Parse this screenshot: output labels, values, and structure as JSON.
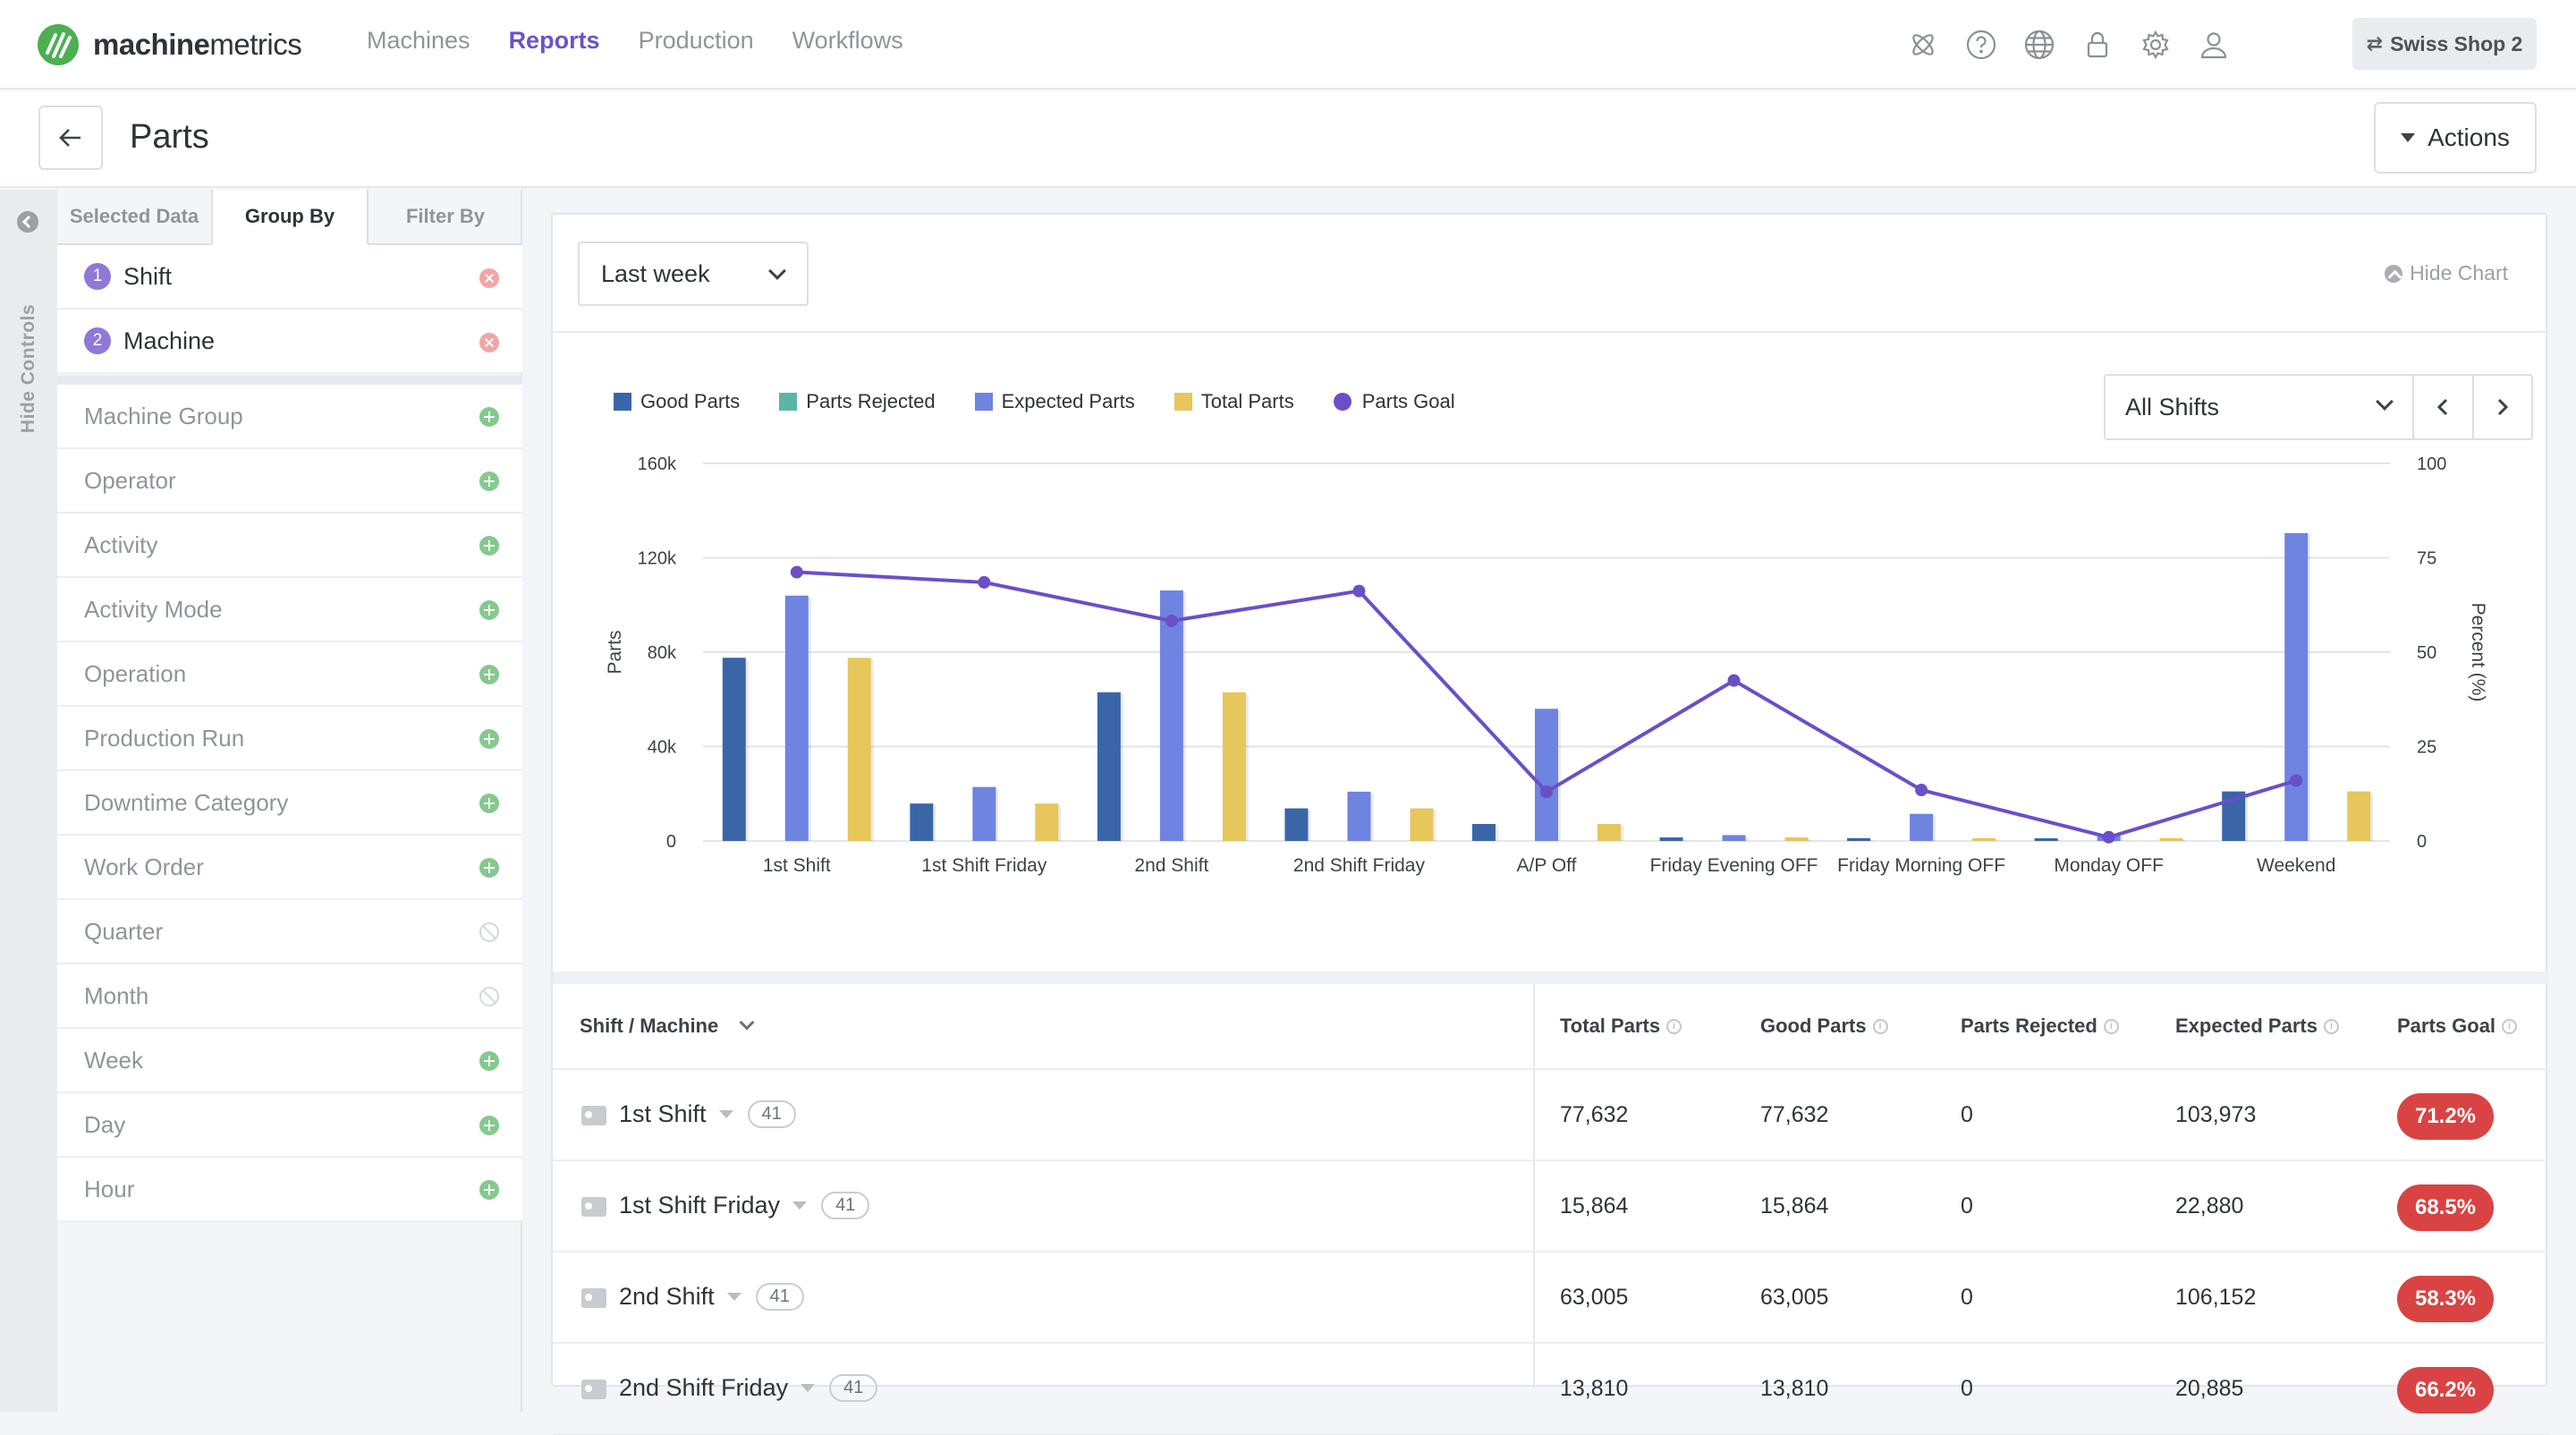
{
  "brand": {
    "name_bold": "machine",
    "name_rest": "metrics",
    "accent": "#6a53c8",
    "logo_color": "#4caf50"
  },
  "nav": {
    "links": [
      {
        "label": "Machines",
        "active": false
      },
      {
        "label": "Reports",
        "active": true
      },
      {
        "label": "Production",
        "active": false
      },
      {
        "label": "Workflows",
        "active": false
      }
    ],
    "icons": [
      "atom-icon",
      "help-icon",
      "globe-icon",
      "lock-icon",
      "settings-icon",
      "user-icon"
    ],
    "shop_label": "Swiss Shop 2"
  },
  "page": {
    "title": "Parts",
    "actions_label": "Actions"
  },
  "side": {
    "hide_label": "Hide Controls",
    "tabs": [
      "Selected Data",
      "Group By",
      "Filter By"
    ],
    "active_tab": "Group By",
    "selected": [
      {
        "num": "1",
        "label": "Shift"
      },
      {
        "num": "2",
        "label": "Machine"
      }
    ],
    "options": [
      {
        "label": "Machine Group",
        "enabled": true
      },
      {
        "label": "Operator",
        "enabled": true
      },
      {
        "label": "Activity",
        "enabled": true
      },
      {
        "label": "Activity Mode",
        "enabled": true
      },
      {
        "label": "Operation",
        "enabled": true
      },
      {
        "label": "Production Run",
        "enabled": true
      },
      {
        "label": "Downtime Category",
        "enabled": true
      },
      {
        "label": "Work Order",
        "enabled": true
      },
      {
        "label": "Quarter",
        "enabled": false
      },
      {
        "label": "Month",
        "enabled": false
      },
      {
        "label": "Week",
        "enabled": true
      },
      {
        "label": "Day",
        "enabled": true
      },
      {
        "label": "Hour",
        "enabled": true
      }
    ]
  },
  "toolbar": {
    "range": "Last week",
    "hide_chart": "Hide Chart",
    "shift_filter": "All Shifts"
  },
  "chart_data": {
    "type": "bar",
    "categories": [
      "1st Shift",
      "1st Shift Friday",
      "2nd Shift",
      "2nd Shift Friday",
      "A/P Off",
      "Friday Evening OFF",
      "Friday Morning OFF",
      "Monday OFF",
      "Weekend"
    ],
    "series": [
      {
        "name": "Good Parts",
        "color": "#3a66a8",
        "values": [
          77632,
          15864,
          63005,
          13810,
          7200,
          1500,
          1200,
          300,
          21000
        ]
      },
      {
        "name": "Parts Rejected",
        "color": "#5bb6a9",
        "values": [
          0,
          0,
          0,
          0,
          0,
          0,
          0,
          0,
          0
        ]
      },
      {
        "name": "Expected Parts",
        "color": "#6f83e0",
        "values": [
          103973,
          22880,
          106152,
          20885,
          56000,
          2500,
          11500,
          2800,
          130500
        ]
      },
      {
        "name": "Total Parts",
        "color": "#e7c65c",
        "values": [
          77632,
          15864,
          63005,
          13810,
          7200,
          1500,
          1200,
          300,
          21000
        ]
      }
    ],
    "line_series": {
      "name": "Parts Goal",
      "color": "#6a4fc9",
      "axis": "right",
      "values": [
        71.2,
        68.5,
        58.3,
        66.2,
        13,
        42.5,
        13.5,
        1,
        16
      ]
    },
    "ylabel": "Parts",
    "y2label": "Percent (%)",
    "ylim": [
      0,
      160000
    ],
    "y2lim": [
      0,
      100
    ],
    "yticks": [
      "0",
      "40k",
      "80k",
      "120k",
      "160k"
    ],
    "y2ticks": [
      "0",
      "25",
      "50",
      "75",
      "100"
    ],
    "grid": true,
    "legend_position": "top-left"
  },
  "table": {
    "group_header": "Shift / Machine",
    "columns": [
      "Total Parts",
      "Good Parts",
      "Parts Rejected",
      "Expected Parts",
      "Parts Goal"
    ],
    "goal_color": "#d94343",
    "rows": [
      {
        "name": "1st Shift",
        "count": "41",
        "total": "77,632",
        "good": "77,632",
        "rejected": "0",
        "expected": "103,973",
        "goal": "71.2%"
      },
      {
        "name": "1st Shift Friday",
        "count": "41",
        "total": "15,864",
        "good": "15,864",
        "rejected": "0",
        "expected": "22,880",
        "goal": "68.5%"
      },
      {
        "name": "2nd Shift",
        "count": "41",
        "total": "63,005",
        "good": "63,005",
        "rejected": "0",
        "expected": "106,152",
        "goal": "58.3%"
      },
      {
        "name": "2nd Shift Friday",
        "count": "41",
        "total": "13,810",
        "good": "13,810",
        "rejected": "0",
        "expected": "20,885",
        "goal": "66.2%"
      }
    ]
  }
}
